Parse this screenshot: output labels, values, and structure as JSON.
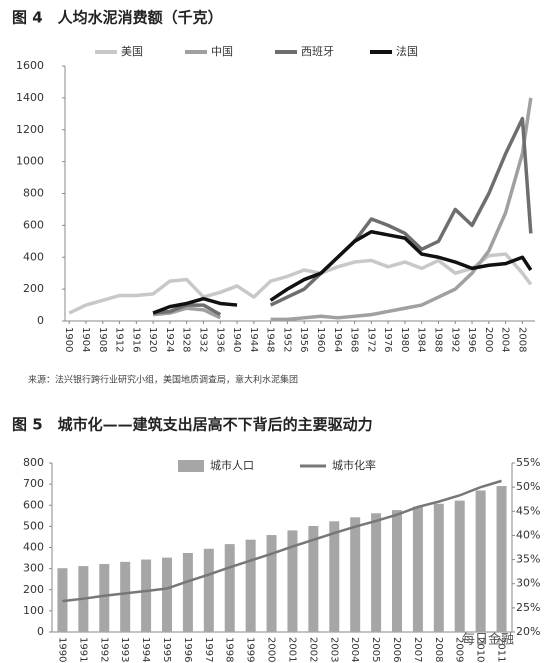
{
  "chart_data": [
    {
      "type": "line",
      "title": "图 4　人均水泥消费额（千克）",
      "source": "来源：法兴银行跨行业研究小组，美国地质调查局，意大利水泥集团",
      "x": [
        1900,
        1904,
        1908,
        1912,
        1916,
        1920,
        1924,
        1928,
        1932,
        1936,
        1940,
        1944,
        1948,
        1952,
        1956,
        1960,
        1964,
        1968,
        1972,
        1976,
        1980,
        1984,
        1988,
        1992,
        1996,
        2000,
        2004,
        2008,
        2010
      ],
      "xlim": [
        1899,
        2011
      ],
      "xticks": [
        1900,
        1904,
        1908,
        1912,
        1916,
        1920,
        1924,
        1928,
        1932,
        1936,
        1940,
        1944,
        1948,
        1952,
        1956,
        1960,
        1964,
        1968,
        1972,
        1976,
        1980,
        1984,
        1988,
        1992,
        1996,
        2000,
        2004,
        2008
      ],
      "ylim": [
        0,
        1600
      ],
      "yticks": [
        0,
        200,
        400,
        600,
        800,
        1000,
        1200,
        1400,
        1600
      ],
      "series": [
        {
          "name": "美国",
          "color": "#c8c8c8",
          "values": [
            50,
            100,
            130,
            160,
            160,
            170,
            250,
            260,
            150,
            180,
            220,
            150,
            250,
            280,
            320,
            300,
            340,
            370,
            380,
            340,
            370,
            330,
            380,
            300,
            330,
            410,
            420,
            300,
            230
          ]
        },
        {
          "name": "中国",
          "color": "#a0a0a0",
          "values": [
            null,
            null,
            null,
            null,
            null,
            40,
            50,
            80,
            70,
            20,
            null,
            null,
            10,
            10,
            20,
            30,
            20,
            30,
            40,
            60,
            80,
            100,
            150,
            200,
            300,
            440,
            680,
            1050,
            1400
          ]
        },
        {
          "name": "西班牙",
          "color": "#6e6e6e",
          "values": [
            null,
            null,
            null,
            null,
            null,
            50,
            60,
            100,
            100,
            40,
            null,
            null,
            100,
            150,
            200,
            300,
            400,
            500,
            640,
            600,
            550,
            450,
            500,
            700,
            600,
            800,
            1050,
            1270,
            550
          ]
        },
        {
          "name": "法国",
          "color": "#111111",
          "values": [
            null,
            null,
            null,
            null,
            null,
            50,
            90,
            110,
            140,
            110,
            100,
            null,
            130,
            200,
            260,
            300,
            400,
            500,
            560,
            540,
            520,
            420,
            400,
            370,
            330,
            350,
            360,
            400,
            320
          ]
        }
      ]
    },
    {
      "type": "bar",
      "title": "图 5　城市化——建筑支出居高不下背后的主要驱动力",
      "categories": [
        "1990",
        "1991",
        "1992",
        "1993",
        "1994",
        "1995",
        "1996",
        "1997",
        "1998",
        "1999",
        "2000",
        "2001",
        "2002",
        "2003",
        "2004",
        "2005",
        "2006",
        "2007",
        "2008",
        "2009",
        "2010",
        "2011"
      ],
      "ylim": [
        0,
        800
      ],
      "yticks": [
        0,
        100,
        200,
        300,
        400,
        500,
        600,
        700,
        800
      ],
      "y2lim": [
        20,
        55
      ],
      "y2ticks": [
        {
          "value": 20,
          "label": "20%"
        },
        {
          "value": 25,
          "label": "25%"
        },
        {
          "value": 30,
          "label": "30%"
        },
        {
          "value": 35,
          "label": "35%"
        },
        {
          "value": 40,
          "label": "40%"
        },
        {
          "value": 45,
          "label": "45%"
        },
        {
          "value": 50,
          "label": "50%"
        },
        {
          "value": 55,
          "label": "55%"
        }
      ],
      "series": [
        {
          "name": "城市人口",
          "type": "bar",
          "color": "#a6a6a6",
          "values": [
            302,
            312,
            322,
            332,
            343,
            352,
            374,
            394,
            416,
            437,
            459,
            481,
            502,
            524,
            543,
            562,
            577,
            594,
            607,
            622,
            670,
            691
          ]
        },
        {
          "name": "城市化率",
          "type": "line",
          "axis": "y2",
          "color": "#777777",
          "values": [
            26.4,
            26.9,
            27.5,
            28.0,
            28.5,
            29.0,
            30.5,
            31.9,
            33.4,
            34.8,
            36.2,
            37.7,
            39.1,
            40.5,
            41.8,
            43.0,
            44.3,
            45.9,
            47.0,
            48.3,
            50.0,
            51.3
          ]
        }
      ]
    }
  ],
  "watermark": "每日金融"
}
